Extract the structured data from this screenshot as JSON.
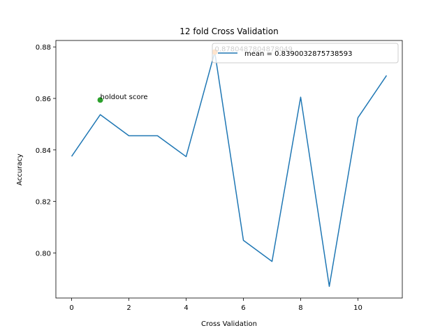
{
  "chart_data": {
    "type": "line",
    "title": "12 fold Cross Validation",
    "xlabel": "Cross Validation",
    "ylabel": "Accuracy",
    "xlim": [
      -0.55,
      11.55
    ],
    "ylim": [
      0.7825,
      0.8825
    ],
    "xticks": [
      0,
      2,
      4,
      6,
      8,
      10
    ],
    "yticks": [
      0.8,
      0.82,
      0.84,
      0.86,
      0.88
    ],
    "grid": false,
    "legend_position": "top-right",
    "series": [
      {
        "name": "mean = 0.8390032875738593",
        "color": "#1f77b4",
        "x": [
          0,
          1,
          2,
          3,
          4,
          5,
          6,
          7,
          8,
          9,
          10,
          11
        ],
        "y": [
          0.8375,
          0.8537,
          0.8455,
          0.8455,
          0.8374,
          0.878,
          0.8049,
          0.7967,
          0.8605,
          0.787,
          0.8525,
          0.8689
        ]
      }
    ],
    "points": [
      {
        "x": 5,
        "y": 0.878,
        "color": "#ff7f0e",
        "label": "0.8780487804878049"
      },
      {
        "x": 1,
        "y": 0.8594,
        "color": "#2ca02c",
        "label": "holdout score"
      }
    ]
  }
}
